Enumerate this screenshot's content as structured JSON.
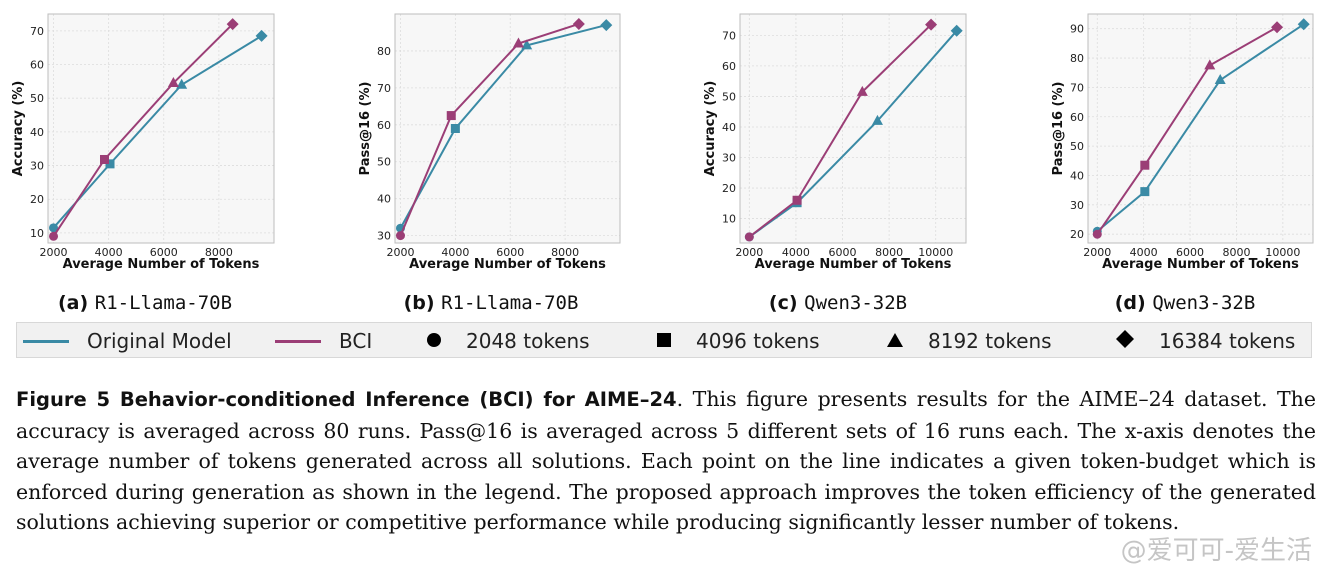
{
  "colors": {
    "original": "#3a8aa5",
    "bci": "#9b3e76",
    "grid": "#dddddd",
    "panel_bg": "#f7f7f7"
  },
  "chart_data": [
    {
      "type": "line",
      "id": "a",
      "letter": "(a)",
      "name": "R1-Llama-70B",
      "xlabel": "Average Number of Tokens",
      "ylabel": "Accuracy (%)",
      "xlim": [
        1800,
        10000
      ],
      "ylim": [
        7,
        75
      ],
      "xticks": [
        2000,
        4000,
        6000,
        8000
      ],
      "yticks": [
        10,
        20,
        30,
        40,
        50,
        60,
        70
      ],
      "series": [
        {
          "name": "Original Model",
          "x": [
            2000,
            4050,
            6650,
            9550
          ],
          "y": [
            11.5,
            30.5,
            54,
            68.5
          ]
        },
        {
          "name": "BCI",
          "x": [
            2000,
            3850,
            6350,
            8500
          ],
          "y": [
            9,
            31.8,
            54.5,
            72
          ]
        }
      ]
    },
    {
      "type": "line",
      "id": "b",
      "letter": "(b)",
      "name": "R1-Llama-70B",
      "xlabel": "Average Number of Tokens",
      "ylabel": "Pass@16 (%)",
      "xlim": [
        1800,
        10000
      ],
      "ylim": [
        28,
        90
      ],
      "xticks": [
        2000,
        4000,
        6000,
        8000
      ],
      "yticks": [
        30,
        40,
        50,
        60,
        70,
        80
      ],
      "series": [
        {
          "name": "Original Model",
          "x": [
            2000,
            4000,
            6600,
            9500
          ],
          "y": [
            32,
            59,
            81.5,
            87
          ]
        },
        {
          "name": "BCI",
          "x": [
            2000,
            3850,
            6300,
            8500
          ],
          "y": [
            30,
            62.5,
            82,
            87.3
          ]
        }
      ]
    },
    {
      "type": "line",
      "id": "c",
      "letter": "(c)",
      "name": "Qwen3-32B",
      "xlabel": "Average Number of Tokens",
      "ylabel": "Accuracy (%)",
      "xlim": [
        1600,
        11300
      ],
      "ylim": [
        2,
        77
      ],
      "xticks": [
        2000,
        4000,
        6000,
        8000,
        10000
      ],
      "yticks": [
        10,
        20,
        30,
        40,
        50,
        60,
        70
      ],
      "series": [
        {
          "name": "Original Model",
          "x": [
            2000,
            4050,
            7500,
            10900
          ],
          "y": [
            4,
            15.2,
            42,
            71.5
          ]
        },
        {
          "name": "BCI",
          "x": [
            2000,
            4050,
            6850,
            9800
          ],
          "y": [
            4,
            16,
            51.5,
            73.5
          ]
        }
      ]
    },
    {
      "type": "line",
      "id": "d",
      "letter": "(d)",
      "name": "Qwen3-32B",
      "xlabel": "Average Number of Tokens",
      "ylabel": "Pass@16 (%)",
      "xlim": [
        1600,
        11300
      ],
      "ylim": [
        17,
        95
      ],
      "xticks": [
        2000,
        4000,
        6000,
        8000,
        10000
      ],
      "yticks": [
        20,
        30,
        40,
        50,
        60,
        70,
        80,
        90
      ],
      "series": [
        {
          "name": "Original Model",
          "x": [
            2000,
            4050,
            7300,
            10900
          ],
          "y": [
            21,
            34.5,
            72.5,
            91.5
          ]
        },
        {
          "name": "BCI",
          "x": [
            2000,
            4050,
            6850,
            9750
          ],
          "y": [
            20,
            43.5,
            77.5,
            90.5
          ]
        }
      ]
    }
  ],
  "legend": {
    "original_label": "Original Model",
    "bci_label": "BCI",
    "tok_2048": "2048 tokens",
    "tok_4096": "4096 tokens",
    "tok_8192": "8192 tokens",
    "tok_16384": "16384 tokens"
  },
  "caption": {
    "head": "Figure 5  Behavior-conditioned Inference (BCI) for AIME–24",
    "body": ". This figure presents results for the AIME–24 dataset. The accuracy is averaged across 80 runs. Pass@16 is averaged across 5 different sets of 16 runs each. The x-axis denotes the average number of tokens generated across all solutions. Each point on the line indicates a given token-budget which is enforced during generation as shown in the legend. The proposed approach improves the token efficiency of the generated solutions achieving superior or competitive performance while producing significantly lesser number of tokens."
  },
  "watermark": "@爱可可-爱生活"
}
